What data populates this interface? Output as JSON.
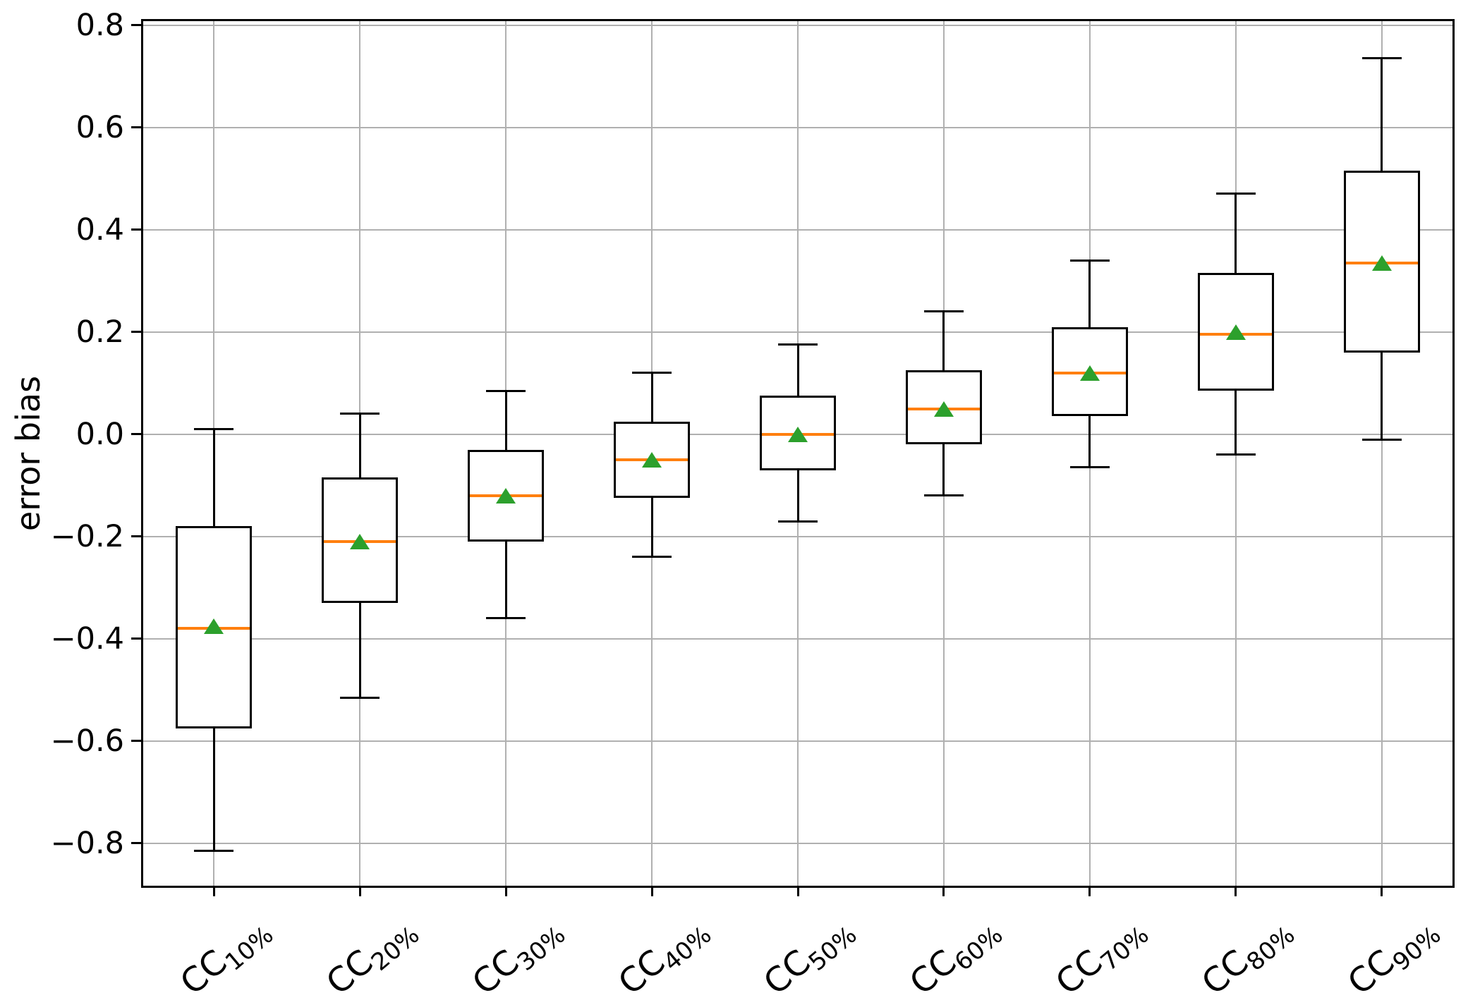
{
  "figure": {
    "background": "#ffffff"
  },
  "chart_data": {
    "type": "boxplot",
    "title": "",
    "xlabel": "",
    "ylabel": "error bias",
    "ylim": [
      -0.887,
      0.812
    ],
    "grid": true,
    "grid_color": "#b0b0b0",
    "colors": {
      "box": "#000000",
      "median": "#ff7f0e",
      "mean_marker": "#2ca02c",
      "spine": "#000000"
    },
    "yticks": {
      "values": [
        0.8,
        0.6,
        0.4,
        0.2,
        0.0,
        -0.2,
        -0.4,
        -0.6,
        -0.8
      ],
      "labels": [
        "0.8",
        "0.6",
        "0.4",
        "0.2",
        "0.0",
        "−0.2",
        "−0.4",
        "−0.6",
        "−0.8"
      ]
    },
    "categories": [
      {
        "base": "CC",
        "sub": "10%"
      },
      {
        "base": "CC",
        "sub": "20%"
      },
      {
        "base": "CC",
        "sub": "30%"
      },
      {
        "base": "CC",
        "sub": "40%"
      },
      {
        "base": "CC",
        "sub": "50%"
      },
      {
        "base": "CC",
        "sub": "60%"
      },
      {
        "base": "CC",
        "sub": "70%"
      },
      {
        "base": "CC",
        "sub": "80%"
      },
      {
        "base": "CC",
        "sub": "90%"
      }
    ],
    "series": [
      {
        "label": "CC10%",
        "whisker_low": -0.815,
        "q1": -0.575,
        "median": -0.38,
        "mean": -0.375,
        "q3": -0.18,
        "whisker_high": 0.01
      },
      {
        "label": "CC20%",
        "whisker_low": -0.515,
        "q1": -0.33,
        "median": -0.21,
        "mean": -0.21,
        "q3": -0.085,
        "whisker_high": 0.04
      },
      {
        "label": "CC30%",
        "whisker_low": -0.36,
        "q1": -0.21,
        "median": -0.12,
        "mean": -0.12,
        "q3": -0.03,
        "whisker_high": 0.085
      },
      {
        "label": "CC40%",
        "whisker_low": -0.24,
        "q1": -0.125,
        "median": -0.05,
        "mean": -0.05,
        "q3": 0.025,
        "whisker_high": 0.12
      },
      {
        "label": "CC50%",
        "whisker_low": -0.17,
        "q1": -0.07,
        "median": 0.0,
        "mean": 0.0,
        "q3": 0.075,
        "whisker_high": 0.175
      },
      {
        "label": "CC60%",
        "whisker_low": -0.12,
        "q1": -0.02,
        "median": 0.05,
        "mean": 0.05,
        "q3": 0.125,
        "whisker_high": 0.24
      },
      {
        "label": "CC70%",
        "whisker_low": -0.065,
        "q1": 0.035,
        "median": 0.12,
        "mean": 0.12,
        "q3": 0.21,
        "whisker_high": 0.34
      },
      {
        "label": "CC80%",
        "whisker_low": -0.04,
        "q1": 0.085,
        "median": 0.195,
        "mean": 0.2,
        "q3": 0.315,
        "whisker_high": 0.47
      },
      {
        "label": "CC90%",
        "whisker_low": -0.01,
        "q1": 0.16,
        "median": 0.335,
        "mean": 0.335,
        "q3": 0.515,
        "whisker_high": 0.735
      }
    ]
  }
}
